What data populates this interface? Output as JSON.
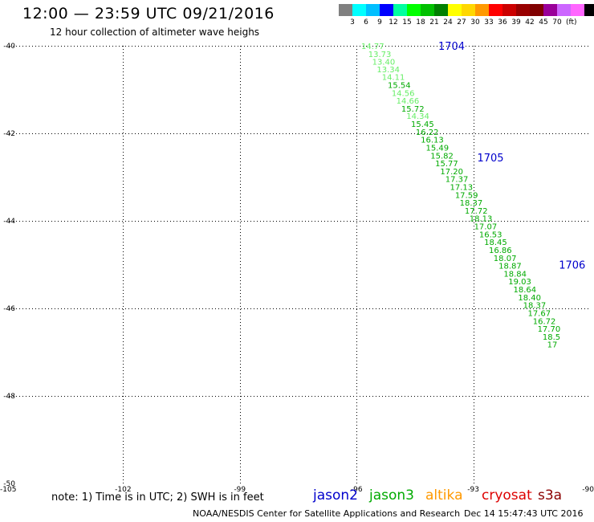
{
  "title": "12:00 — 23:59 UTC 09/21/2016",
  "subtitle": "12 hour collection of altimeter wave heighs",
  "legend": {
    "colors": [
      "#808080",
      "#00ffff",
      "#00bfff",
      "#0000ff",
      "#00ffa0",
      "#00ff00",
      "#00c000",
      "#008000",
      "#ffff00",
      "#ffd700",
      "#ff9900",
      "#ff0000",
      "#cc0000",
      "#990000",
      "#800000",
      "#990099",
      "#cc66ff",
      "#ff66ff",
      "#000000"
    ],
    "labels": [
      "3",
      "6",
      "9",
      "12",
      "15",
      "18",
      "21",
      "24",
      "27",
      "30",
      "33",
      "36",
      "39",
      "42",
      "45",
      "70"
    ],
    "unit": "(ft)"
  },
  "map": {
    "lon_ticks": [
      "-105",
      "-102",
      "-99",
      "-96",
      "-93",
      "-90"
    ],
    "lat_ticks": [
      "-40",
      "-42",
      "-44",
      "-46",
      "-48",
      "-50"
    ],
    "lon_range": [
      -105,
      -90
    ],
    "lat_range": [
      -40,
      -50
    ],
    "lat_lines": [
      -40,
      -42,
      -44,
      -46,
      -48
    ],
    "lon_lines": [
      -102,
      -99,
      -96,
      -93
    ],
    "grid": "dotted"
  },
  "time_labels": [
    {
      "text": "1704",
      "lon": -93.9,
      "lat": -40.0,
      "color": "#0000cc"
    },
    {
      "text": "1705",
      "lon": -92.9,
      "lat": -42.55,
      "color": "#0000cc"
    },
    {
      "text": "1706",
      "lon": -90.8,
      "lat": -45.0,
      "color": "#0000cc"
    }
  ],
  "observations": [
    {
      "text": "14.77",
      "lon": -95.88,
      "lat": -40.0,
      "color": "#66ee66"
    },
    {
      "text": "13.73",
      "lon": -95.7,
      "lat": -40.18,
      "color": "#66ee66"
    },
    {
      "text": "13.40",
      "lon": -95.6,
      "lat": -40.36,
      "color": "#66ee66"
    },
    {
      "text": "13.34",
      "lon": -95.48,
      "lat": -40.53,
      "color": "#66ee66"
    },
    {
      "text": "14.11",
      "lon": -95.35,
      "lat": -40.71,
      "color": "#66ee66"
    },
    {
      "text": "15.54",
      "lon": -95.2,
      "lat": -40.89,
      "color": "#00aa00"
    },
    {
      "text": "14.56",
      "lon": -95.1,
      "lat": -41.07,
      "color": "#66ee66"
    },
    {
      "text": "14.66",
      "lon": -94.98,
      "lat": -41.25,
      "color": "#66ee66"
    },
    {
      "text": "15.72",
      "lon": -94.85,
      "lat": -41.43,
      "color": "#00aa00"
    },
    {
      "text": "14.34",
      "lon": -94.72,
      "lat": -41.6,
      "color": "#66ee66"
    },
    {
      "text": "15.45",
      "lon": -94.6,
      "lat": -41.78,
      "color": "#00aa00"
    },
    {
      "text": "16.22",
      "lon": -94.48,
      "lat": -41.96,
      "color": "#00aa00"
    },
    {
      "text": "16.13",
      "lon": -94.35,
      "lat": -42.14,
      "color": "#00aa00"
    },
    {
      "text": "15.49",
      "lon": -94.22,
      "lat": -42.32,
      "color": "#00aa00"
    },
    {
      "text": "15.82",
      "lon": -94.1,
      "lat": -42.5,
      "color": "#00aa00"
    },
    {
      "text": "15.77",
      "lon": -93.98,
      "lat": -42.68,
      "color": "#00aa00"
    },
    {
      "text": "17.20",
      "lon": -93.85,
      "lat": -42.86,
      "color": "#00aa00"
    },
    {
      "text": "17.37",
      "lon": -93.72,
      "lat": -43.04,
      "color": "#00aa00"
    },
    {
      "text": "17.13",
      "lon": -93.6,
      "lat": -43.22,
      "color": "#00aa00"
    },
    {
      "text": "17.59",
      "lon": -93.47,
      "lat": -43.4,
      "color": "#00aa00"
    },
    {
      "text": "18.37",
      "lon": -93.35,
      "lat": -43.58,
      "color": "#00aa00"
    },
    {
      "text": "17.72",
      "lon": -93.22,
      "lat": -43.76,
      "color": "#00aa00"
    },
    {
      "text": "18.13",
      "lon": -93.1,
      "lat": -43.94,
      "color": "#00aa00"
    },
    {
      "text": "17.07",
      "lon": -92.98,
      "lat": -44.12,
      "color": "#00aa00"
    },
    {
      "text": "16.53",
      "lon": -92.85,
      "lat": -44.3,
      "color": "#00aa00"
    },
    {
      "text": "18.45",
      "lon": -92.72,
      "lat": -44.48,
      "color": "#00aa00"
    },
    {
      "text": "16.86",
      "lon": -92.6,
      "lat": -44.66,
      "color": "#00aa00"
    },
    {
      "text": "18.07",
      "lon": -92.48,
      "lat": -44.84,
      "color": "#00aa00"
    },
    {
      "text": "18.87",
      "lon": -92.35,
      "lat": -45.02,
      "color": "#00aa00"
    },
    {
      "text": "18.84",
      "lon": -92.22,
      "lat": -45.2,
      "color": "#00aa00"
    },
    {
      "text": "19.03",
      "lon": -92.1,
      "lat": -45.38,
      "color": "#00aa00"
    },
    {
      "text": "18.64",
      "lon": -91.97,
      "lat": -45.56,
      "color": "#00aa00"
    },
    {
      "text": "18.40",
      "lon": -91.85,
      "lat": -45.74,
      "color": "#00aa00"
    },
    {
      "text": "18.37",
      "lon": -91.72,
      "lat": -45.92,
      "color": "#00aa00"
    },
    {
      "text": "17.67",
      "lon": -91.6,
      "lat": -46.1,
      "color": "#00aa00"
    },
    {
      "text": "16.72",
      "lon": -91.47,
      "lat": -46.28,
      "color": "#00aa00"
    },
    {
      "text": "17.70",
      "lon": -91.35,
      "lat": -46.46,
      "color": "#00aa00"
    },
    {
      "text": "18.5",
      "lon": -91.22,
      "lat": -46.64,
      "color": "#00aa00"
    },
    {
      "text": "17",
      "lon": -91.1,
      "lat": -46.82,
      "color": "#00aa00"
    }
  ],
  "note": "note: 1) Time is in UTC; 2) SWH is in feet",
  "satellites": [
    {
      "name": "jason2",
      "color": "#0000cc"
    },
    {
      "name": "jason3",
      "color": "#00aa00"
    },
    {
      "name": "altika",
      "color": "#ff9900"
    },
    {
      "name": "cryosat",
      "color": "#dd0000"
    },
    {
      "name": "s3a",
      "color": "#8b0000"
    }
  ],
  "footer": "NOAA/NESDIS Center for Satellite Applications and Research",
  "footer_date": "Dec 14 15:47:43 UTC 2016"
}
